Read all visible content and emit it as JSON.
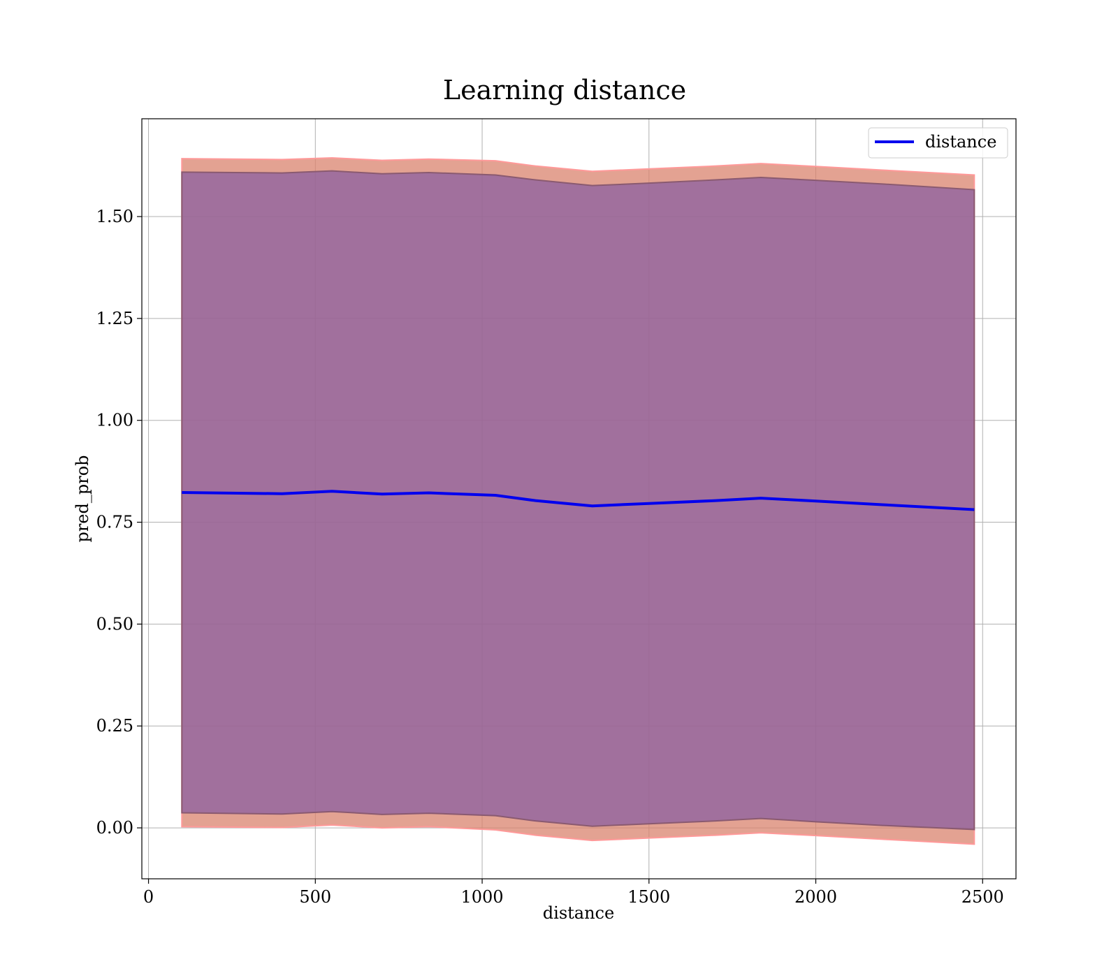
{
  "chart_data": {
    "type": "line",
    "title": "Learning distance",
    "xlabel": "distance",
    "ylabel": "pred_prob",
    "xlim": [
      -20,
      2600
    ],
    "ylim": [
      -0.125,
      1.74
    ],
    "grid": true,
    "legend": {
      "placement": "top-right",
      "entries": [
        "distance"
      ]
    },
    "xticks": [
      0,
      500,
      1000,
      1500,
      2000,
      2500
    ],
    "xtick_labels": [
      "0",
      "500",
      "1000",
      "1500",
      "2000",
      "2500"
    ],
    "yticks": [
      0.0,
      0.25,
      0.5,
      0.75,
      1.0,
      1.25,
      1.5
    ],
    "ytick_labels": [
      "0.00",
      "0.25",
      "0.50",
      "0.75",
      "1.00",
      "1.25",
      "1.50"
    ],
    "x": [
      100,
      400,
      550,
      700,
      840,
      1040,
      1160,
      1330,
      1500,
      1700,
      1835,
      2000,
      2200,
      2475
    ],
    "series": [
      {
        "name": "distance",
        "color": "#0000ee",
        "values": [
          0.823,
          0.82,
          0.826,
          0.819,
          0.822,
          0.816,
          0.803,
          0.79,
          0.796,
          0.803,
          0.809,
          0.802,
          0.793,
          0.781
        ]
      }
    ],
    "bands": [
      {
        "color": "#d9836e",
        "edge_color": "#ff9999",
        "upper": [
          1.642,
          1.64,
          1.644,
          1.638,
          1.641,
          1.637,
          1.624,
          1.611,
          1.617,
          1.624,
          1.63,
          1.623,
          1.614,
          1.602
        ],
        "lower": [
          0.003,
          0.001,
          0.007,
          0.0,
          0.003,
          -0.005,
          -0.018,
          -0.031,
          -0.025,
          -0.018,
          -0.012,
          -0.019,
          -0.028,
          -0.04
        ]
      },
      {
        "color": "#8b5fa0",
        "edge_color": "#8a5a70",
        "upper": [
          1.609,
          1.607,
          1.612,
          1.605,
          1.608,
          1.602,
          1.59,
          1.576,
          1.582,
          1.59,
          1.596,
          1.589,
          1.58,
          1.566
        ],
        "lower": [
          0.037,
          0.034,
          0.04,
          0.033,
          0.036,
          0.03,
          0.017,
          0.004,
          0.01,
          0.017,
          0.023,
          0.015,
          0.006,
          -0.004
        ]
      }
    ]
  }
}
